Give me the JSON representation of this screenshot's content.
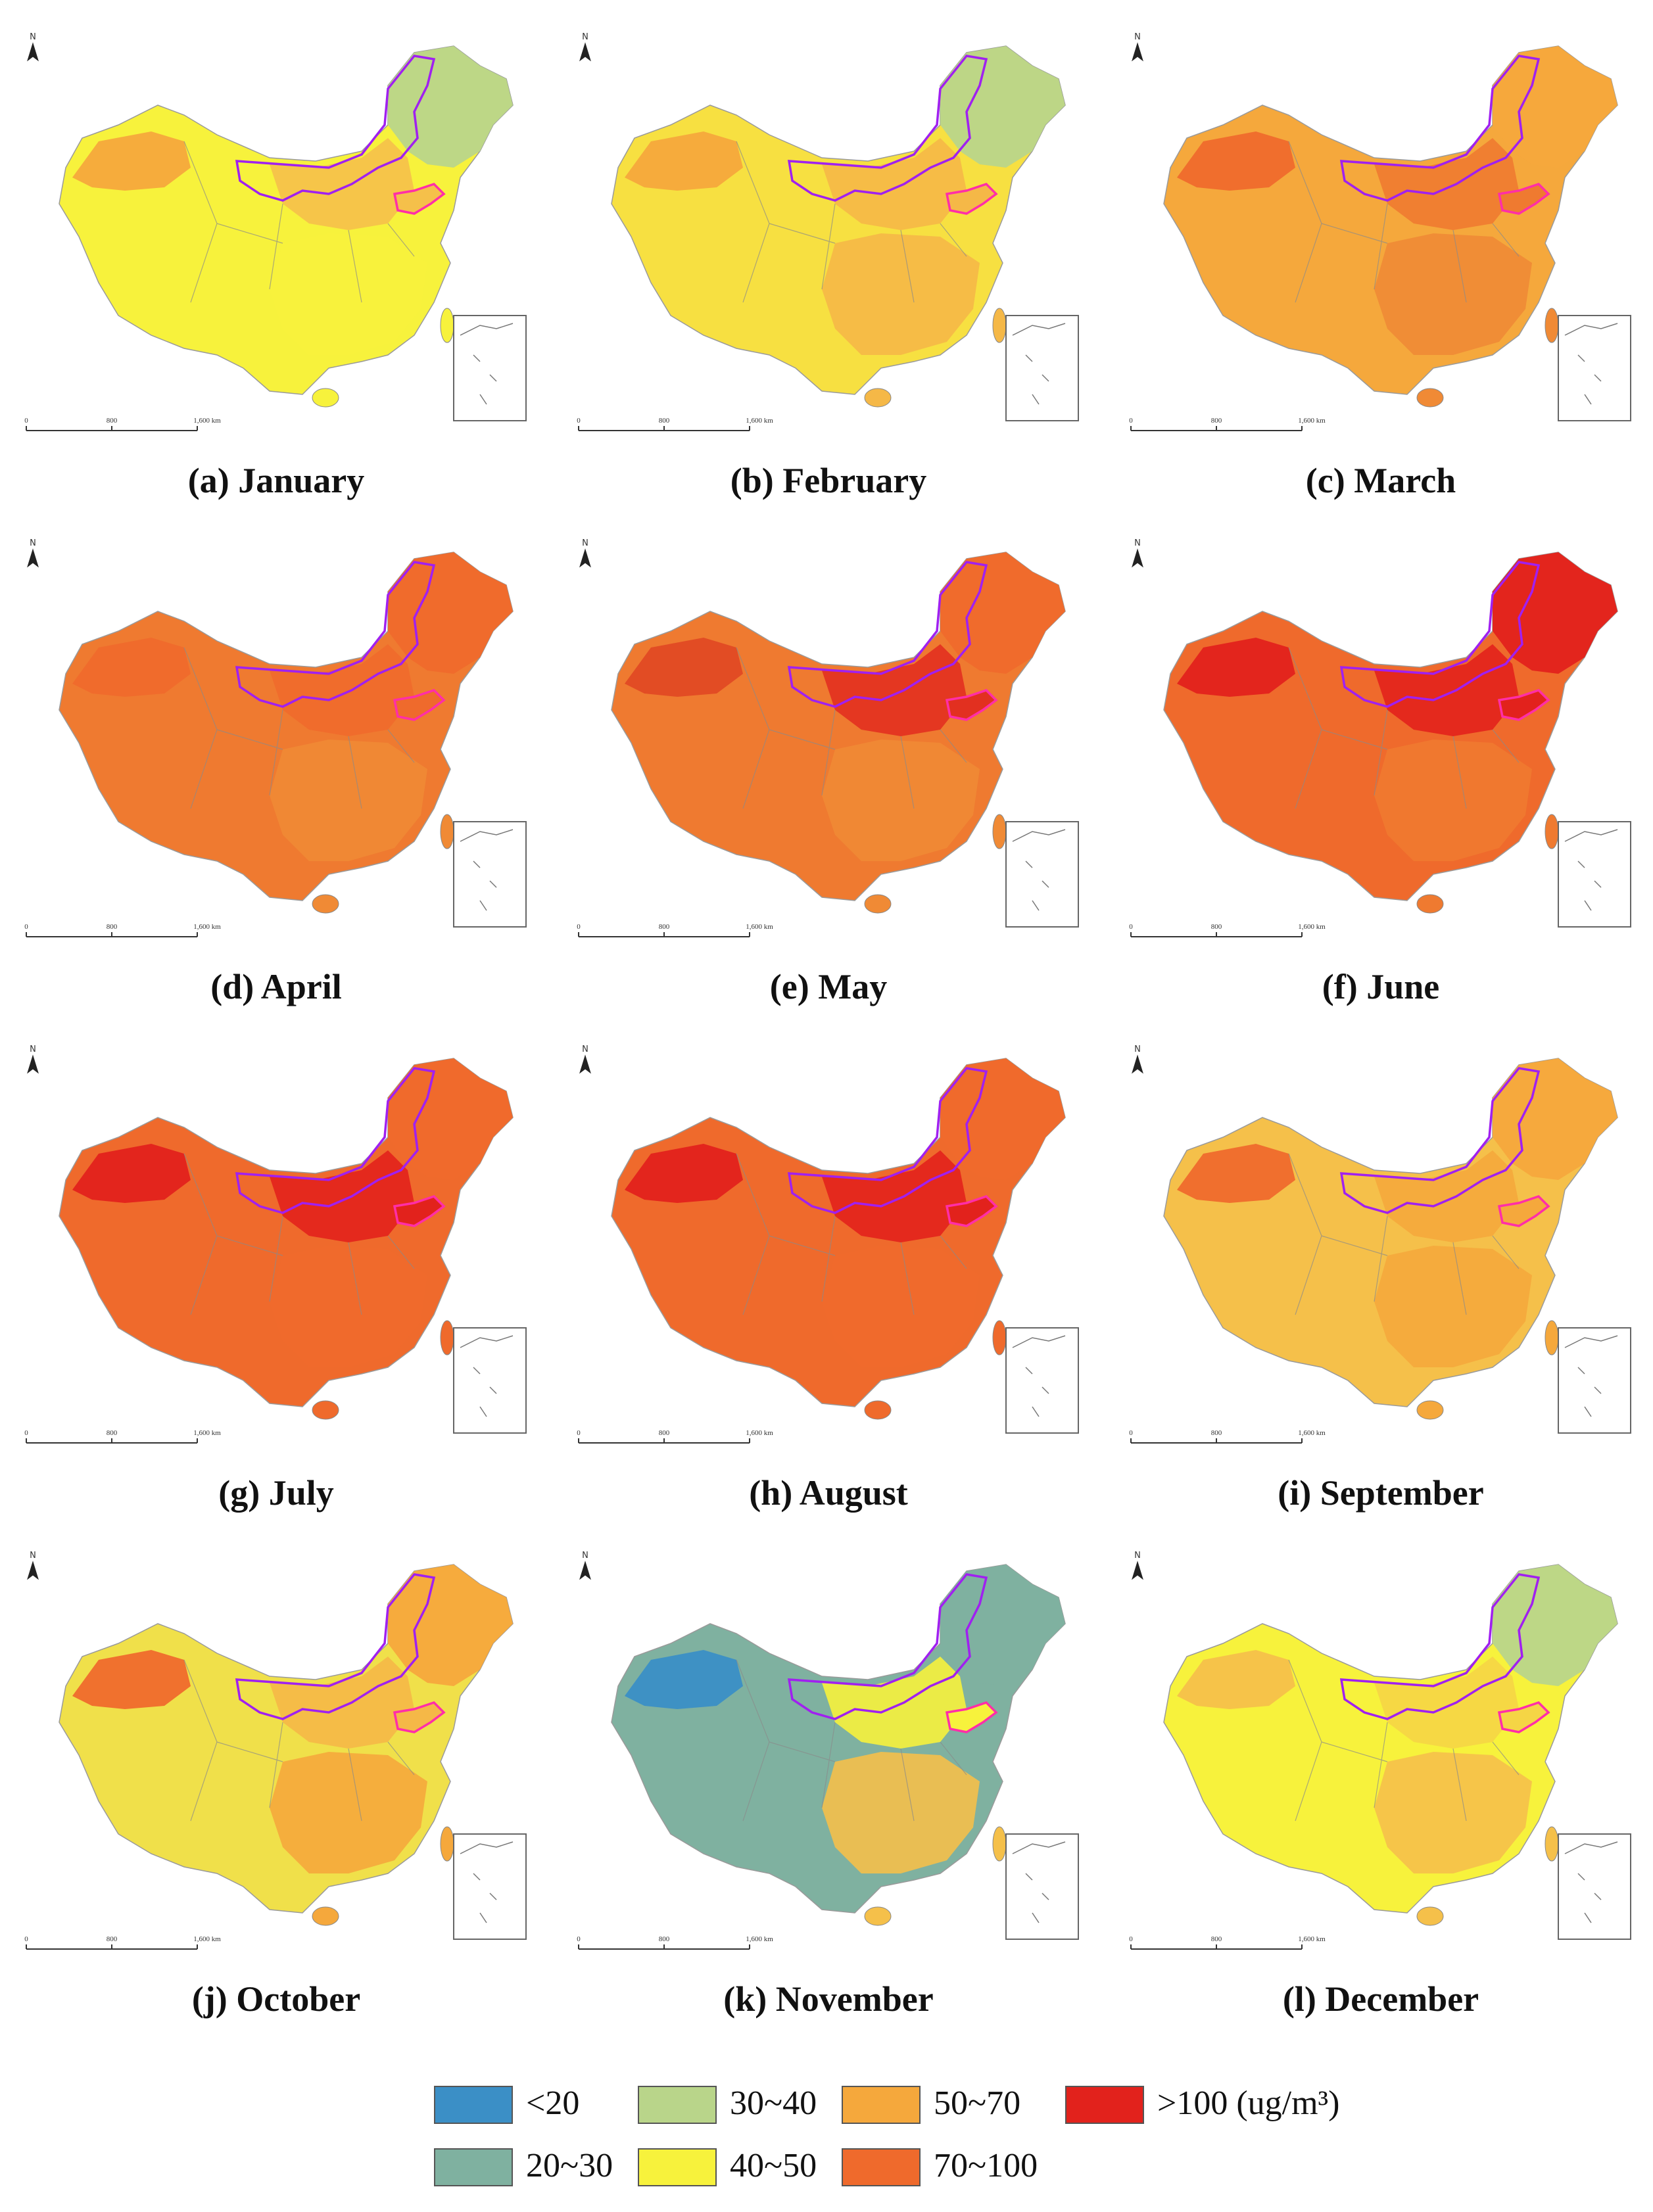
{
  "panels": [
    {
      "caption": "(a) January",
      "scale_mid": "800",
      "scale_max": "1,600 km",
      "colors": {
        "base": "#f7f23c",
        "west": "#f5a83c",
        "ne": "#b9d58a",
        "mid": "#f5c04a",
        "south": "#f7f23c"
      }
    },
    {
      "caption": "(b) February",
      "scale_mid": "800",
      "scale_max": "1,600 km",
      "colors": {
        "base": "#f7e041",
        "west": "#f5a83c",
        "ne": "#b9d58a",
        "mid": "#f5b847",
        "south": "#f5b847"
      }
    },
    {
      "caption": "(c) March",
      "scale_mid": "800",
      "scale_max": "1,600 km",
      "colors": {
        "base": "#f5a83c",
        "west": "#ef6a2c",
        "ne": "#f5a83c",
        "mid": "#ef7a30",
        "south": "#f08a35"
      }
    },
    {
      "caption": "(d) April",
      "scale_mid": "800",
      "scale_max": "1,600 km",
      "colors": {
        "base": "#ef7a30",
        "west": "#ef6a2c",
        "ne": "#ef6a2c",
        "mid": "#ef6a2c",
        "south": "#f08a35"
      }
    },
    {
      "caption": "(e) May",
      "scale_mid": "800",
      "scale_max": "1,600 km",
      "colors": {
        "base": "#ef7a30",
        "west": "#e04a24",
        "ne": "#ef6a2c",
        "mid": "#e23020",
        "south": "#f08a35"
      }
    },
    {
      "caption": "(f) June",
      "scale_mid": "800",
      "scale_max": "1,600 km",
      "colors": {
        "base": "#ef6a2c",
        "west": "#e2221c",
        "ne": "#e2221c",
        "mid": "#e2221c",
        "south": "#ef7a30"
      }
    },
    {
      "caption": "(g) July",
      "scale_mid": "800",
      "scale_max": "1,600 km",
      "colors": {
        "base": "#ef6a2c",
        "west": "#e2221c",
        "ne": "#ef6a2c",
        "mid": "#e2221c",
        "south": "#ef6a2c"
      }
    },
    {
      "caption": "(h) August",
      "scale_mid": "800",
      "scale_max": "1,600 km",
      "colors": {
        "base": "#ef6a2c",
        "west": "#e2221c",
        "ne": "#ef6a2c",
        "mid": "#e2221c",
        "south": "#ef6a2c"
      }
    },
    {
      "caption": "(i) September",
      "scale_mid": "800",
      "scale_max": "1,600 km",
      "colors": {
        "base": "#f5c04a",
        "west": "#ef6a2c",
        "ne": "#f5a83c",
        "mid": "#f5a83c",
        "south": "#f5a83c"
      }
    },
    {
      "caption": "(j) October",
      "scale_mid": "800",
      "scale_max": "1,600 km",
      "colors": {
        "base": "#f0e04a",
        "west": "#ef6a2c",
        "ne": "#f5a83c",
        "mid": "#f5b847",
        "south": "#f5a83c"
      }
    },
    {
      "caption": "(k) November",
      "scale_mid": "800",
      "scale_max": "1,600 km",
      "colors": {
        "base": "#7fb1a0",
        "west": "#3b8fc6",
        "ne": "#7fb1a0",
        "mid": "#f7f23c",
        "south": "#f5c04a"
      }
    },
    {
      "caption": "(l) December",
      "scale_mid": "800",
      "scale_max": "1,600 km",
      "colors": {
        "base": "#f7f23c",
        "west": "#f5c04a",
        "ne": "#b9d58a",
        "mid": "#f5d545",
        "south": "#f5c04a"
      }
    }
  ],
  "legend": {
    "items": [
      {
        "label": "<20",
        "color": "#3b8fc6"
      },
      {
        "label": "30~40",
        "color": "#b9d58a"
      },
      {
        "label": "50~70",
        "color": "#f5a83c"
      },
      {
        "label": ">100 (ug/m³)",
        "color": "#e2221c"
      },
      {
        "label": "20~30",
        "color": "#7fb1a0"
      },
      {
        "label": "40~50",
        "color": "#f7f23c"
      },
      {
        "label": "70~100",
        "color": "#ef6a2c"
      }
    ]
  },
  "map_labels": {
    "north": "N",
    "scale_zero": "0"
  },
  "highlight_colors": {
    "inner_mongolia": "#a020f0",
    "shandong": "#ff2ea8"
  }
}
